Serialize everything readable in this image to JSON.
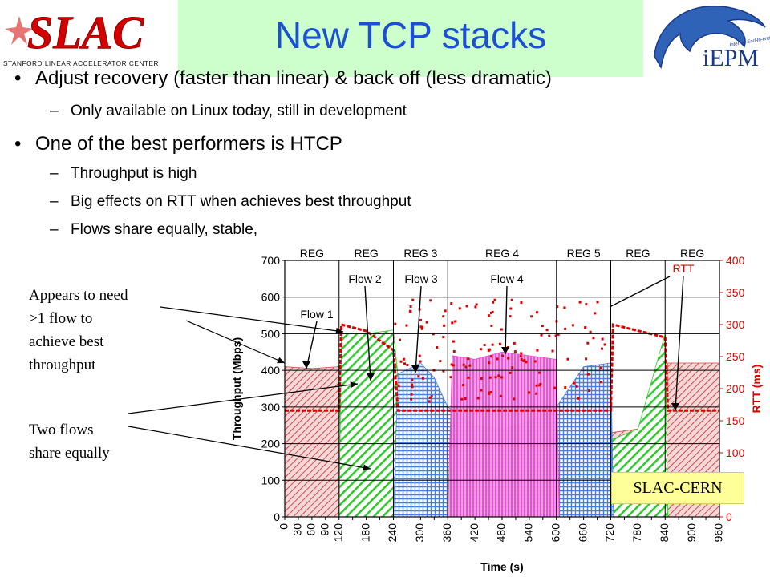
{
  "slide": {
    "title": "New TCP stacks",
    "title_color": "#1a4fd6",
    "title_bg": "#ccffcc"
  },
  "logos": {
    "left": {
      "text": "SLAC",
      "subtext": "STANFORD LINEAR ACCELERATOR CENTER",
      "color": "#d40000"
    },
    "right": {
      "text": "iEPM",
      "subtext": "Internet End-to-end Performance Monitoring",
      "color": "#1a3a8a"
    }
  },
  "bullets": [
    {
      "text": "Adjust recovery (faster than linear) & back off (less dramatic)",
      "subs": [
        "Only available on Linux today, still in development"
      ]
    },
    {
      "text": "One of the best performers is HTCP",
      "subs": [
        "Throughput is high",
        "Big effects on RTT when achieves best throughput",
        "Flows share equally, stable,"
      ]
    }
  ],
  "annotations": {
    "left_top": [
      "Appears to need",
      ">1 flow to",
      "achieve best",
      "throughput"
    ],
    "left_bottom": [
      "Two flows",
      "share equally"
    ],
    "source": "SLAC-CERN"
  },
  "chart_data": {
    "type": "area",
    "xlabel": "Time (s)",
    "ylabel": "Throughput (Mbps)",
    "y2label": "RTT (ms)",
    "xlim": [
      0,
      960
    ],
    "ylim": [
      0,
      700
    ],
    "y2lim": [
      0,
      400
    ],
    "x_ticks": [
      0,
      30,
      60,
      90,
      120,
      150,
      180,
      210,
      240,
      270,
      300,
      330,
      360,
      390,
      420,
      450,
      480,
      510,
      540,
      570,
      600,
      630,
      660,
      690,
      720,
      750,
      780,
      810,
      840,
      870,
      900,
      930,
      960
    ],
    "x_tick_labels": [
      "0",
      "30",
      "60",
      "90",
      "120",
      "180",
      "240",
      "300",
      "360",
      "420",
      "480",
      "540",
      "600",
      "660",
      "720",
      "780",
      "840",
      "900",
      "960"
    ],
    "x_tick_label_values": [
      0,
      30,
      60,
      90,
      120,
      180,
      240,
      300,
      360,
      420,
      480,
      540,
      600,
      660,
      720,
      780,
      840,
      900,
      960
    ],
    "y_ticks": [
      0,
      100,
      200,
      300,
      400,
      500,
      600,
      700
    ],
    "y2_ticks": [
      0,
      50,
      100,
      150,
      200,
      250,
      300,
      350,
      400
    ],
    "grid": true,
    "regions": [
      {
        "label": "REG",
        "start": 0,
        "end": 120
      },
      {
        "label": "REG",
        "start": 120,
        "end": 240
      },
      {
        "label": "REG 3",
        "start": 240,
        "end": 360
      },
      {
        "label": "REG 4",
        "start": 360,
        "end": 600
      },
      {
        "label": "REG 5",
        "start": 600,
        "end": 720
      },
      {
        "label": "REG",
        "start": 720,
        "end": 840
      },
      {
        "label": "REG",
        "start": 840,
        "end": 960
      }
    ],
    "series": [
      {
        "name": "Flow 1",
        "color": "#d04040",
        "points": [
          [
            0,
            410
          ],
          [
            60,
            405
          ],
          [
            120,
            410
          ],
          [
            126,
            40
          ],
          [
            140,
            280
          ],
          [
            160,
            250
          ],
          [
            180,
            270
          ],
          [
            200,
            280
          ],
          [
            240,
            280
          ],
          [
            260,
            260
          ],
          [
            300,
            240
          ],
          [
            330,
            230
          ],
          [
            360,
            200
          ],
          [
            420,
            170
          ],
          [
            480,
            160
          ],
          [
            540,
            180
          ],
          [
            600,
            170
          ],
          [
            660,
            200
          ],
          [
            720,
            230
          ],
          [
            780,
            240
          ],
          [
            840,
            240
          ],
          [
            846,
            420
          ],
          [
            900,
            420
          ],
          [
            960,
            420
          ]
        ]
      },
      {
        "name": "Flow 2",
        "color": "#22cc22",
        "points": [
          [
            120,
            0
          ],
          [
            125,
            500
          ],
          [
            180,
            500
          ],
          [
            240,
            510
          ],
          [
            260,
            260
          ],
          [
            300,
            240
          ],
          [
            330,
            230
          ],
          [
            360,
            130
          ],
          [
            420,
            100
          ],
          [
            480,
            110
          ],
          [
            540,
            120
          ],
          [
            600,
            100
          ],
          [
            660,
            130
          ],
          [
            720,
            210
          ],
          [
            780,
            240
          ],
          [
            840,
            500
          ],
          [
            846,
            0
          ]
        ]
      },
      {
        "name": "Flow 3",
        "color": "#4477dd",
        "points": [
          [
            240,
            0
          ],
          [
            250,
            390
          ],
          [
            300,
            420
          ],
          [
            330,
            380
          ],
          [
            360,
            300
          ],
          [
            420,
            250
          ],
          [
            480,
            240
          ],
          [
            540,
            260
          ],
          [
            600,
            300
          ],
          [
            660,
            410
          ],
          [
            720,
            420
          ],
          [
            726,
            0
          ]
        ]
      },
      {
        "name": "Flow 4",
        "color": "#ee44cc",
        "points": [
          [
            360,
            0
          ],
          [
            370,
            440
          ],
          [
            420,
            430
          ],
          [
            480,
            450
          ],
          [
            540,
            440
          ],
          [
            600,
            430
          ],
          [
            606,
            0
          ]
        ]
      },
      {
        "name": "RTT",
        "color": "#dd0000",
        "axis": "right",
        "points": [
          [
            0,
            166
          ],
          [
            120,
            166
          ],
          [
            125,
            300
          ],
          [
            180,
            290
          ],
          [
            240,
            260
          ],
          [
            250,
            166
          ],
          [
            300,
            166
          ],
          [
            360,
            166
          ],
          [
            600,
            166
          ],
          [
            720,
            166
          ],
          [
            725,
            300
          ],
          [
            840,
            280
          ],
          [
            846,
            166
          ],
          [
            960,
            166
          ]
        ]
      }
    ],
    "rtt_scatter_band": [
      180,
      340
    ],
    "rtt_scatter_range": [
      240,
      720
    ]
  }
}
